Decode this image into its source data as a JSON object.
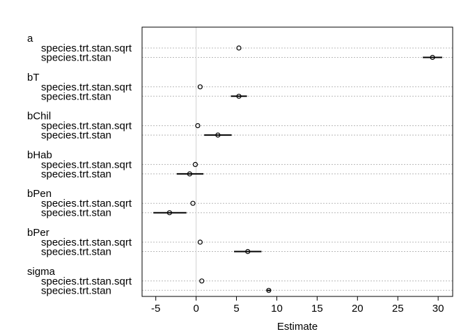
{
  "chart_data": {
    "type": "dot-whisker",
    "xlabel": "Estimate",
    "xlim": [
      -6.7,
      31.8
    ],
    "xticks": [
      -5,
      0,
      5,
      10,
      15,
      20,
      25,
      30
    ],
    "xtick_labels": [
      "-5",
      "0",
      "5",
      "10",
      "15",
      "20",
      "25",
      "30"
    ],
    "reference_line": 0,
    "grid": "dotted horizontal per row",
    "groups": [
      {
        "name": "a",
        "rows": [
          {
            "label": "species.trt.stan.sqrt",
            "estimate": 5.3,
            "low": 5.3,
            "high": 5.3
          },
          {
            "label": "species.trt.stan",
            "estimate": 29.3,
            "low": 28.1,
            "high": 30.5
          }
        ]
      },
      {
        "name": "bT",
        "rows": [
          {
            "label": "species.trt.stan.sqrt",
            "estimate": 0.5,
            "low": 0.5,
            "high": 0.5
          },
          {
            "label": "species.trt.stan",
            "estimate": 5.3,
            "low": 4.3,
            "high": 6.3
          }
        ]
      },
      {
        "name": "bChil",
        "rows": [
          {
            "label": "species.trt.stan.sqrt",
            "estimate": 0.2,
            "low": 0.2,
            "high": 0.2
          },
          {
            "label": "species.trt.stan",
            "estimate": 2.7,
            "low": 1.0,
            "high": 4.4
          }
        ]
      },
      {
        "name": "bHab",
        "rows": [
          {
            "label": "species.trt.stan.sqrt",
            "estimate": -0.1,
            "low": -0.1,
            "high": -0.1
          },
          {
            "label": "species.trt.stan",
            "estimate": -0.8,
            "low": -2.4,
            "high": 0.9
          }
        ]
      },
      {
        "name": "bPen",
        "rows": [
          {
            "label": "species.trt.stan.sqrt",
            "estimate": -0.4,
            "low": -0.4,
            "high": -0.4
          },
          {
            "label": "species.trt.stan",
            "estimate": -3.3,
            "low": -5.3,
            "high": -1.2
          }
        ]
      },
      {
        "name": "bPer",
        "rows": [
          {
            "label": "species.trt.stan.sqrt",
            "estimate": 0.5,
            "low": 0.5,
            "high": 0.5
          },
          {
            "label": "species.trt.stan",
            "estimate": 6.4,
            "low": 4.7,
            "high": 8.1
          }
        ]
      },
      {
        "name": "sigma",
        "rows": [
          {
            "label": "species.trt.stan.sqrt",
            "estimate": 0.7,
            "low": 0.7,
            "high": 0.7
          },
          {
            "label": "species.trt.stan",
            "estimate": 9.0,
            "low": 8.8,
            "high": 9.2
          }
        ]
      }
    ]
  }
}
